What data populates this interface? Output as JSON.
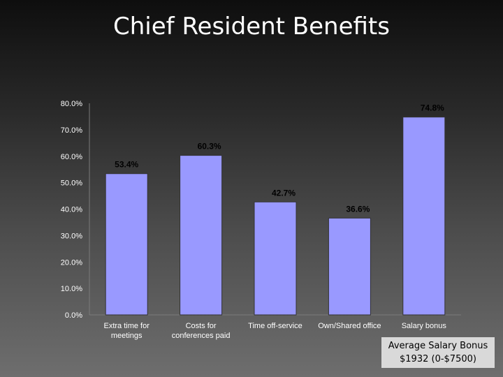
{
  "chart_data": {
    "type": "bar",
    "title": "Chief Resident Benefits",
    "categories": [
      [
        "Extra time for",
        "meetings"
      ],
      [
        "Costs for",
        "conferences paid"
      ],
      [
        "Time off-service"
      ],
      [
        "Own/Shared office"
      ],
      [
        "Salary bonus"
      ]
    ],
    "values": [
      53.4,
      60.3,
      42.7,
      36.6,
      74.8
    ],
    "data_labels": [
      "53.4%",
      "60.3%",
      "42.7%",
      "36.6%",
      "74.8%"
    ],
    "ylim": [
      0,
      80
    ],
    "yticks": [
      "0.0%",
      "10.0%",
      "20.0%",
      "30.0%",
      "40.0%",
      "50.0%",
      "60.0%",
      "70.0%",
      "80.0%"
    ],
    "grid": false,
    "colors": {
      "bar": "#9999ff",
      "bar_border": "#333333",
      "text": "#ffffff",
      "label": "#000000"
    }
  },
  "note": {
    "line1": "Average Salary Bonus",
    "line2": "$1932 (0-$7500)"
  }
}
